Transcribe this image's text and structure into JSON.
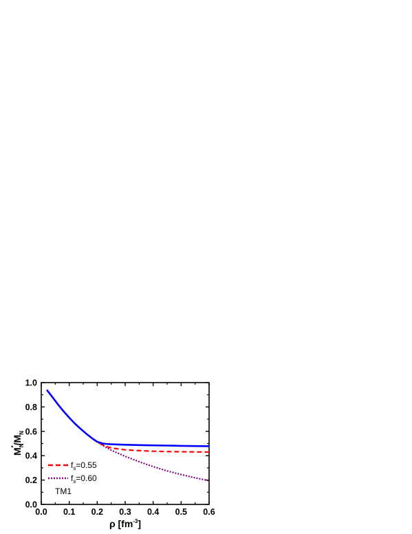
{
  "chart_data": {
    "type": "line",
    "title": "",
    "xlabel": {
      "prefix": "ρ [fm",
      "sup": "-3",
      "suffix": "]"
    },
    "ylabel": {
      "m1": "M",
      "m1_sub": "N",
      "m1_sup": "*",
      "slash": "/M",
      "m2_sub": "N"
    },
    "xlim": [
      0.0,
      0.6
    ],
    "ylim": [
      0.0,
      1.0
    ],
    "xticks": [
      "0.0",
      "0.1",
      "0.2",
      "0.3",
      "0.4",
      "0.5",
      "0.6"
    ],
    "yticks": [
      "0.0",
      "0.2",
      "0.4",
      "0.6",
      "0.8",
      "1.0"
    ],
    "grid": false,
    "legend_position": "lower-left",
    "series": [
      {
        "name": "TM1",
        "style": "solid",
        "color": "#0000ff",
        "x": [
          0.02,
          0.04,
          0.06,
          0.08,
          0.1,
          0.12,
          0.14,
          0.16,
          0.18,
          0.2,
          0.22,
          0.23,
          0.25,
          0.3,
          0.35,
          0.4,
          0.45,
          0.5,
          0.55,
          0.6
        ],
        "y": [
          0.94,
          0.88,
          0.82,
          0.764,
          0.712,
          0.664,
          0.622,
          0.582,
          0.546,
          0.514,
          0.5,
          0.497,
          0.494,
          0.49,
          0.487,
          0.485,
          0.483,
          0.481,
          0.479,
          0.478
        ]
      },
      {
        "name": "f_s=0.55",
        "label_main": "f",
        "label_sub": "s",
        "label_tail": "=0.55",
        "style": "dashed",
        "color": "#ff0000",
        "x": [
          0.02,
          0.04,
          0.06,
          0.08,
          0.1,
          0.12,
          0.14,
          0.16,
          0.18,
          0.2,
          0.22,
          0.23,
          0.25,
          0.3,
          0.35,
          0.4,
          0.45,
          0.5,
          0.55,
          0.6
        ],
        "y": [
          0.94,
          0.88,
          0.82,
          0.764,
          0.712,
          0.664,
          0.622,
          0.582,
          0.546,
          0.514,
          0.488,
          0.478,
          0.463,
          0.448,
          0.441,
          0.437,
          0.434,
          0.432,
          0.431,
          0.43
        ]
      },
      {
        "name": "f_s=0.60",
        "label_main": "f",
        "label_sub": "s",
        "label_tail": "=0.60",
        "style": "dotted",
        "color": "#800080",
        "x": [
          0.02,
          0.04,
          0.06,
          0.08,
          0.1,
          0.12,
          0.14,
          0.16,
          0.18,
          0.2,
          0.22,
          0.23,
          0.25,
          0.3,
          0.35,
          0.4,
          0.45,
          0.5,
          0.55,
          0.6
        ],
        "y": [
          0.94,
          0.88,
          0.82,
          0.764,
          0.712,
          0.664,
          0.622,
          0.582,
          0.546,
          0.514,
          0.484,
          0.47,
          0.445,
          0.395,
          0.35,
          0.31,
          0.275,
          0.245,
          0.218,
          0.195
        ]
      }
    ],
    "legend_entries": [
      {
        "main": "f",
        "sub": "s",
        "tail": "=0.55",
        "style": "dashed",
        "color": "#ff0000"
      },
      {
        "main": "f",
        "sub": "s",
        "tail": "=0.60",
        "style": "dotted",
        "color": "#800080"
      },
      {
        "main": "TM1",
        "sub": "",
        "tail": "",
        "style": "none",
        "color": "#0000ff"
      }
    ]
  }
}
